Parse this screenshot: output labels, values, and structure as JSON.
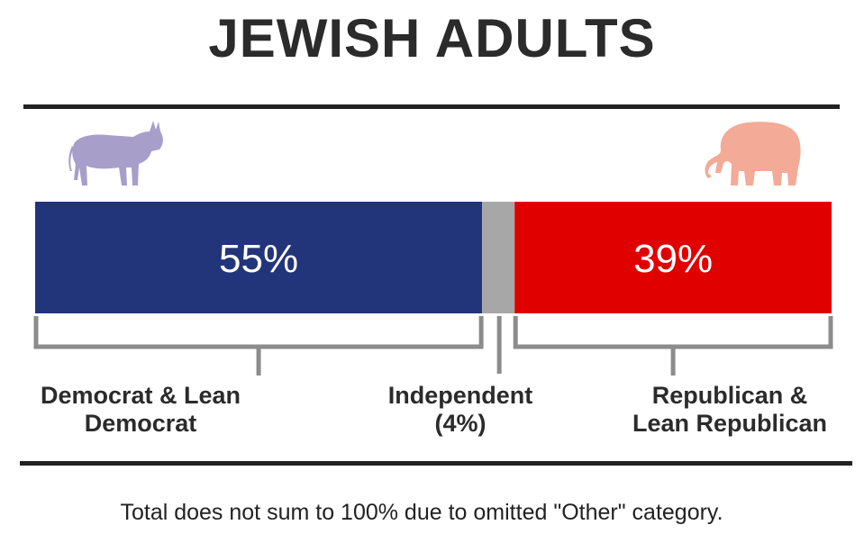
{
  "title": "JEWISH ADULTS",
  "footnote": "Total does not sum to 100% due to omitted \"Other\" category.",
  "icons": {
    "left": "donkey-icon",
    "right": "elephant-icon"
  },
  "chart_data": {
    "type": "bar",
    "orientation": "horizontal-stacked",
    "title": "JEWISH ADULTS",
    "xlim": [
      0,
      98
    ],
    "segments": [
      {
        "name": "Democrat & Lean Democrat",
        "value": 55,
        "label": "55%",
        "color": "#22357a",
        "caption_lines": [
          "Democrat & Lean",
          "Democrat"
        ]
      },
      {
        "name": "Independent",
        "value": 4,
        "label": "",
        "color": "#a7a7a7",
        "caption_lines": [
          "Independent",
          "(4%)"
        ]
      },
      {
        "name": "Republican & Lean Republican",
        "value": 39,
        "label": "39%",
        "color": "#e00000",
        "caption_lines": [
          "Republican &",
          "Lean Republican"
        ]
      }
    ]
  }
}
